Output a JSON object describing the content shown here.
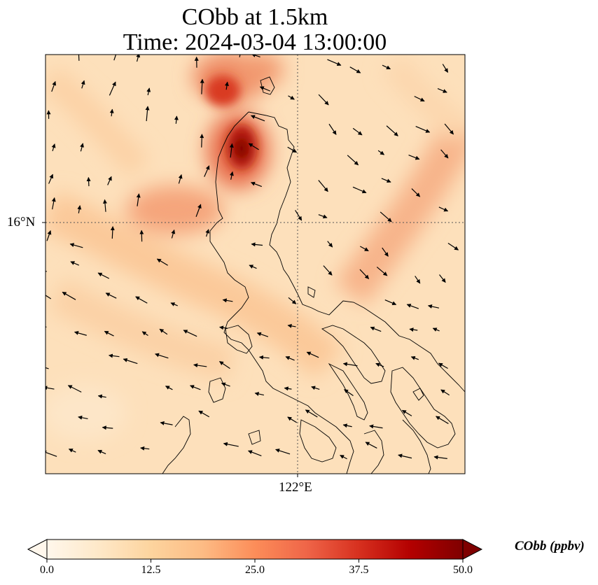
{
  "title": {
    "line1": "CObb at 1.5km",
    "line2": "Time: 2024-03-04 13:00:00"
  },
  "axes": {
    "lat_tick_label": "16°N",
    "lon_tick_label": "122°E"
  },
  "colorbar": {
    "label": "CObb (ppbv)",
    "ticks": [
      "0.0",
      "12.5",
      "25.0",
      "37.5",
      "50.0"
    ],
    "min": 0,
    "max": 50,
    "extend": "both",
    "colormap": "OrRd",
    "colors": [
      "#fff7ec",
      "#fdd49e",
      "#fc8d59",
      "#d7301f",
      "#7f0000"
    ]
  },
  "map": {
    "projection": "lat-lon",
    "gridlines": "dotted",
    "coastlines": true,
    "wind_vectors": true,
    "hotspot_peak_ppbv": 45
  }
}
